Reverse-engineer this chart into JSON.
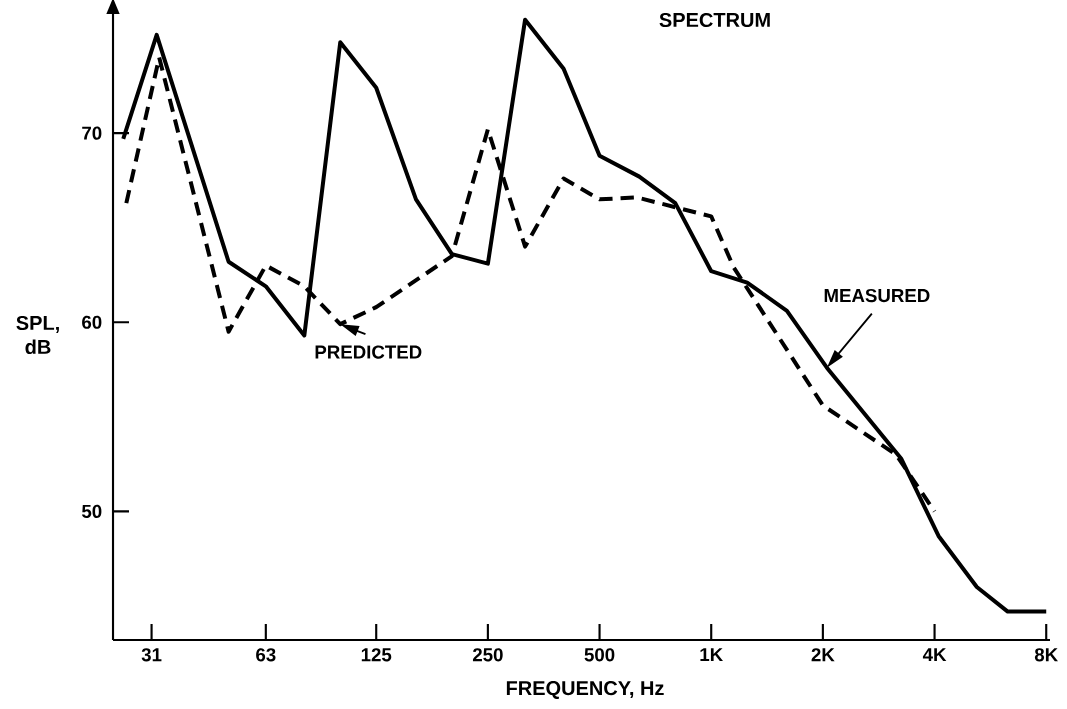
{
  "chart_data": {
    "type": "line",
    "title": "SPECTRUM",
    "xlabel": "FREQUENCY,  Hz",
    "ylabel": "SPL, dB",
    "log": "x",
    "xlim": [
      24.4,
      8190
    ],
    "ylim": [
      43.2,
      76.3
    ],
    "xticks": [
      31,
      63,
      125,
      250,
      500,
      {
        "value": 1000,
        "label": "1K"
      },
      {
        "value": 2000,
        "label": "2K"
      },
      {
        "value": 4000,
        "label": "4K"
      },
      {
        "value": 8000,
        "label": "8K"
      }
    ],
    "yticks": [
      50,
      60,
      70
    ],
    "series": [
      {
        "name": "MEASURED",
        "color": "#000000",
        "line_style": "solid",
        "x": [
          26,
          32,
          50,
          63,
          80,
          100,
          125,
          160,
          200,
          250,
          315,
          400,
          500,
          640,
          800,
          1000,
          1250,
          1600,
          2050,
          3250,
          4100,
          5200,
          6300,
          8000
        ],
        "values": [
          69.7,
          75.2,
          63.2,
          61.9,
          59.3,
          74.8,
          72.4,
          66.5,
          63.6,
          63.1,
          76.0,
          73.4,
          68.8,
          67.7,
          66.3,
          62.7,
          62.1,
          60.6,
          57.6,
          52.8,
          48.7,
          46.0,
          44.7,
          44.7
        ]
      },
      {
        "name": "PREDICTED",
        "color": "#000000",
        "line_style": "dashed",
        "x": [
          26.5,
          32.5,
          50,
          63,
          80,
          100,
          125,
          200,
          250,
          315,
          400,
          500,
          630,
          1000,
          1150,
          2000,
          3150,
          4000
        ],
        "values": [
          66.3,
          74.0,
          59.5,
          63.0,
          61.9,
          59.9,
          60.8,
          63.5,
          70.2,
          64.0,
          67.6,
          66.5,
          66.6,
          65.6,
          62.9,
          55.6,
          53.0,
          50.0
        ]
      }
    ]
  }
}
